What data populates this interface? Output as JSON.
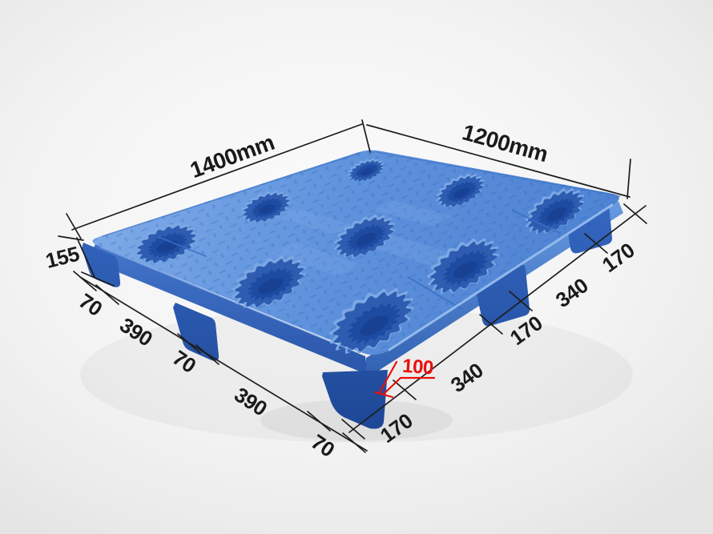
{
  "illustration": {
    "description": "Blue nestable plastic pallet with nine nesting cups shown in perspective with dimension callouts"
  },
  "dimensions": {
    "length": "1400mm",
    "width": "1200mm",
    "height": "155",
    "foot_height": "100",
    "left_segments": [
      "70",
      "390",
      "70",
      "390",
      "70"
    ],
    "right_segments": [
      "170",
      "340",
      "170",
      "340",
      "170"
    ]
  },
  "colors": {
    "pallet_top_blue": "#5c8fd8",
    "pallet_deep_blue": "#1d4fa6",
    "cup_interior": "#1e4ba2",
    "dimension_line": "#1d1d1d",
    "annotation_red": "#e8100c",
    "background_gray": "#efefef"
  }
}
